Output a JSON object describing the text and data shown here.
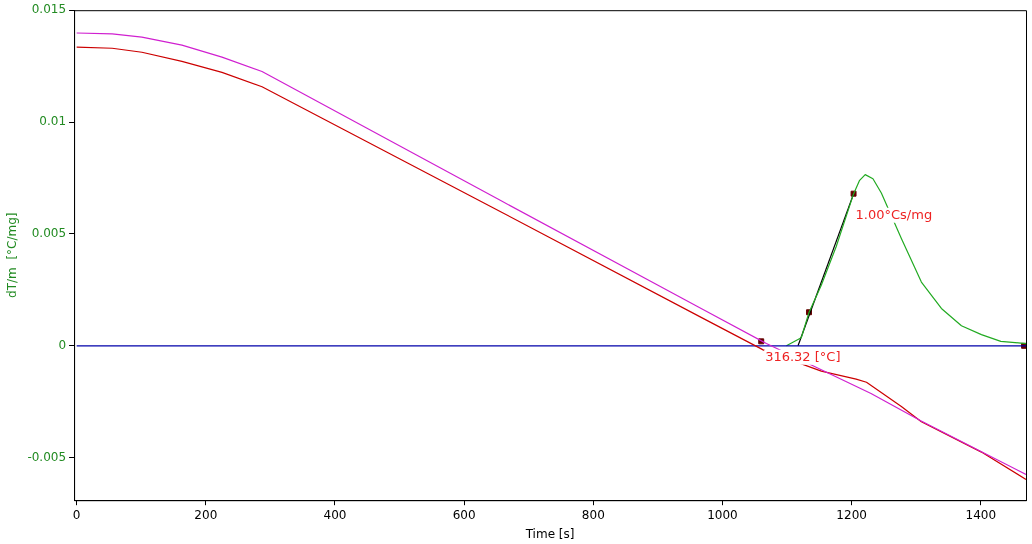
{
  "chart_data": {
    "type": "line",
    "xlabel": "Time [s]",
    "ylabel": "dT/m  [°C/mg]",
    "xlim": [
      -4,
      1470
    ],
    "ylim": [
      -0.0069,
      0.015
    ],
    "xticks": [
      0,
      200,
      400,
      600,
      800,
      1000,
      1200,
      1400
    ],
    "yticks": [
      -0.005,
      0,
      0.005,
      0.01,
      0.015
    ],
    "grid": false,
    "legend": false,
    "marker": "none",
    "line_style": "solid",
    "series": [
      {
        "color": "#d020d0",
        "x": [
          0,
          55,
          101,
          163,
          225,
          287,
          658,
          967,
          1068,
          1230,
          1307,
          1470
        ],
        "values": [
          0.01398,
          0.01394,
          0.0138,
          0.01344,
          0.0129,
          0.01226,
          0.00647,
          0.00167,
          0.0001,
          -0.00213,
          -0.00335,
          -0.00575
        ]
      },
      {
        "color": "#cc0000",
        "x": [
          0,
          55,
          101,
          163,
          225,
          287,
          658,
          967,
          1063,
          1153,
          1207,
          1223,
          1277,
          1308,
          1401,
          1470
        ],
        "values": [
          0.01335,
          0.0133,
          0.01312,
          0.01271,
          0.01222,
          0.01158,
          0.00597,
          0.00127,
          -0.00018,
          -0.00113,
          -0.00149,
          -0.00163,
          -0.00271,
          -0.00339,
          -0.00475,
          -0.00597
        ]
      },
      {
        "color": "#0000aa",
        "x": [
          0,
          1470
        ],
        "values": [
          0,
          0
        ]
      },
      {
        "color": "#22aa22",
        "x": [
          1099,
          1122,
          1134,
          1153,
          1176,
          1203,
          1212,
          1221,
          1233,
          1246,
          1277,
          1308,
          1339,
          1370,
          1401,
          1431,
          1470
        ],
        "values": [
          0,
          0.00036,
          0.00149,
          0.00271,
          0.00443,
          0.00679,
          0.00738,
          0.00765,
          0.00747,
          0.00683,
          0.0048,
          0.00285,
          0.00167,
          0.0009,
          0.0005,
          0.0002,
          0.0001
        ]
      },
      {
        "color": "#000000",
        "x": [
          1117,
          1203
        ],
        "values": [
          0,
          0.00679
        ]
      },
      {
        "type": "scatter",
        "marker": "square",
        "color": "#660000",
        "x": [
          1060,
          1134,
          1203,
          1467
        ],
        "values": [
          0.0002,
          0.0015,
          0.0068,
          0
        ]
      }
    ],
    "annotations": [
      {
        "text": "316.32 [°C]",
        "x": 1063,
        "y": 0
      },
      {
        "text": "1.00°Cs/mg",
        "x": 1203,
        "y": 0.0068
      }
    ]
  }
}
